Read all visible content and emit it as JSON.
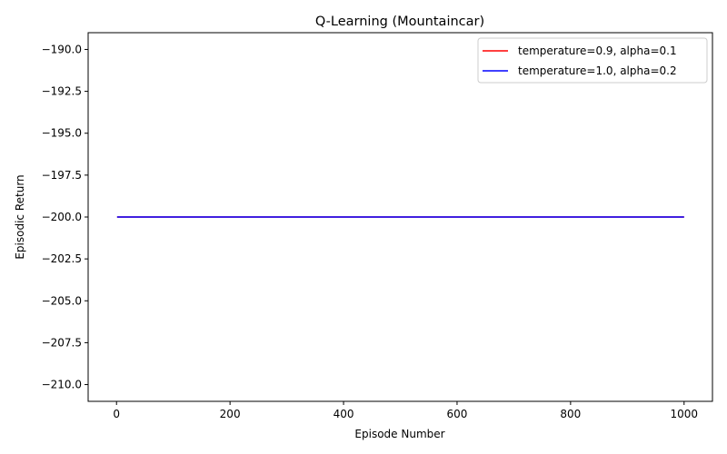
{
  "chart_data": {
    "type": "line",
    "title": "Q-Learning (Mountaincar)",
    "xlabel": "Episode Number",
    "ylabel": "Episodic Return",
    "xlim": [
      -50,
      1050
    ],
    "ylim": [
      -211,
      -189
    ],
    "xticks": [
      0,
      200,
      400,
      600,
      800,
      1000
    ],
    "yticks": [
      -190.0,
      -192.5,
      -195.0,
      -197.5,
      -200.0,
      -202.5,
      -205.0,
      -207.5,
      -210.0
    ],
    "xtick_labels": [
      "0",
      "200",
      "400",
      "600",
      "800",
      "1000"
    ],
    "ytick_labels": [
      "−190.0",
      "−192.5",
      "−195.0",
      "−197.5",
      "−200.0",
      "−202.5",
      "−205.0",
      "−207.5",
      "−210.0"
    ],
    "grid": false,
    "legend_position": "top-right",
    "series": [
      {
        "name": "temperature=0.9, alpha=0.1",
        "color": "#ff0000",
        "x": [
          1,
          1000
        ],
        "y": [
          -200,
          -200
        ]
      },
      {
        "name": "temperature=1.0, alpha=0.2",
        "color": "#0000ff",
        "x": [
          1,
          1000
        ],
        "y": [
          -200,
          -200
        ]
      }
    ]
  }
}
